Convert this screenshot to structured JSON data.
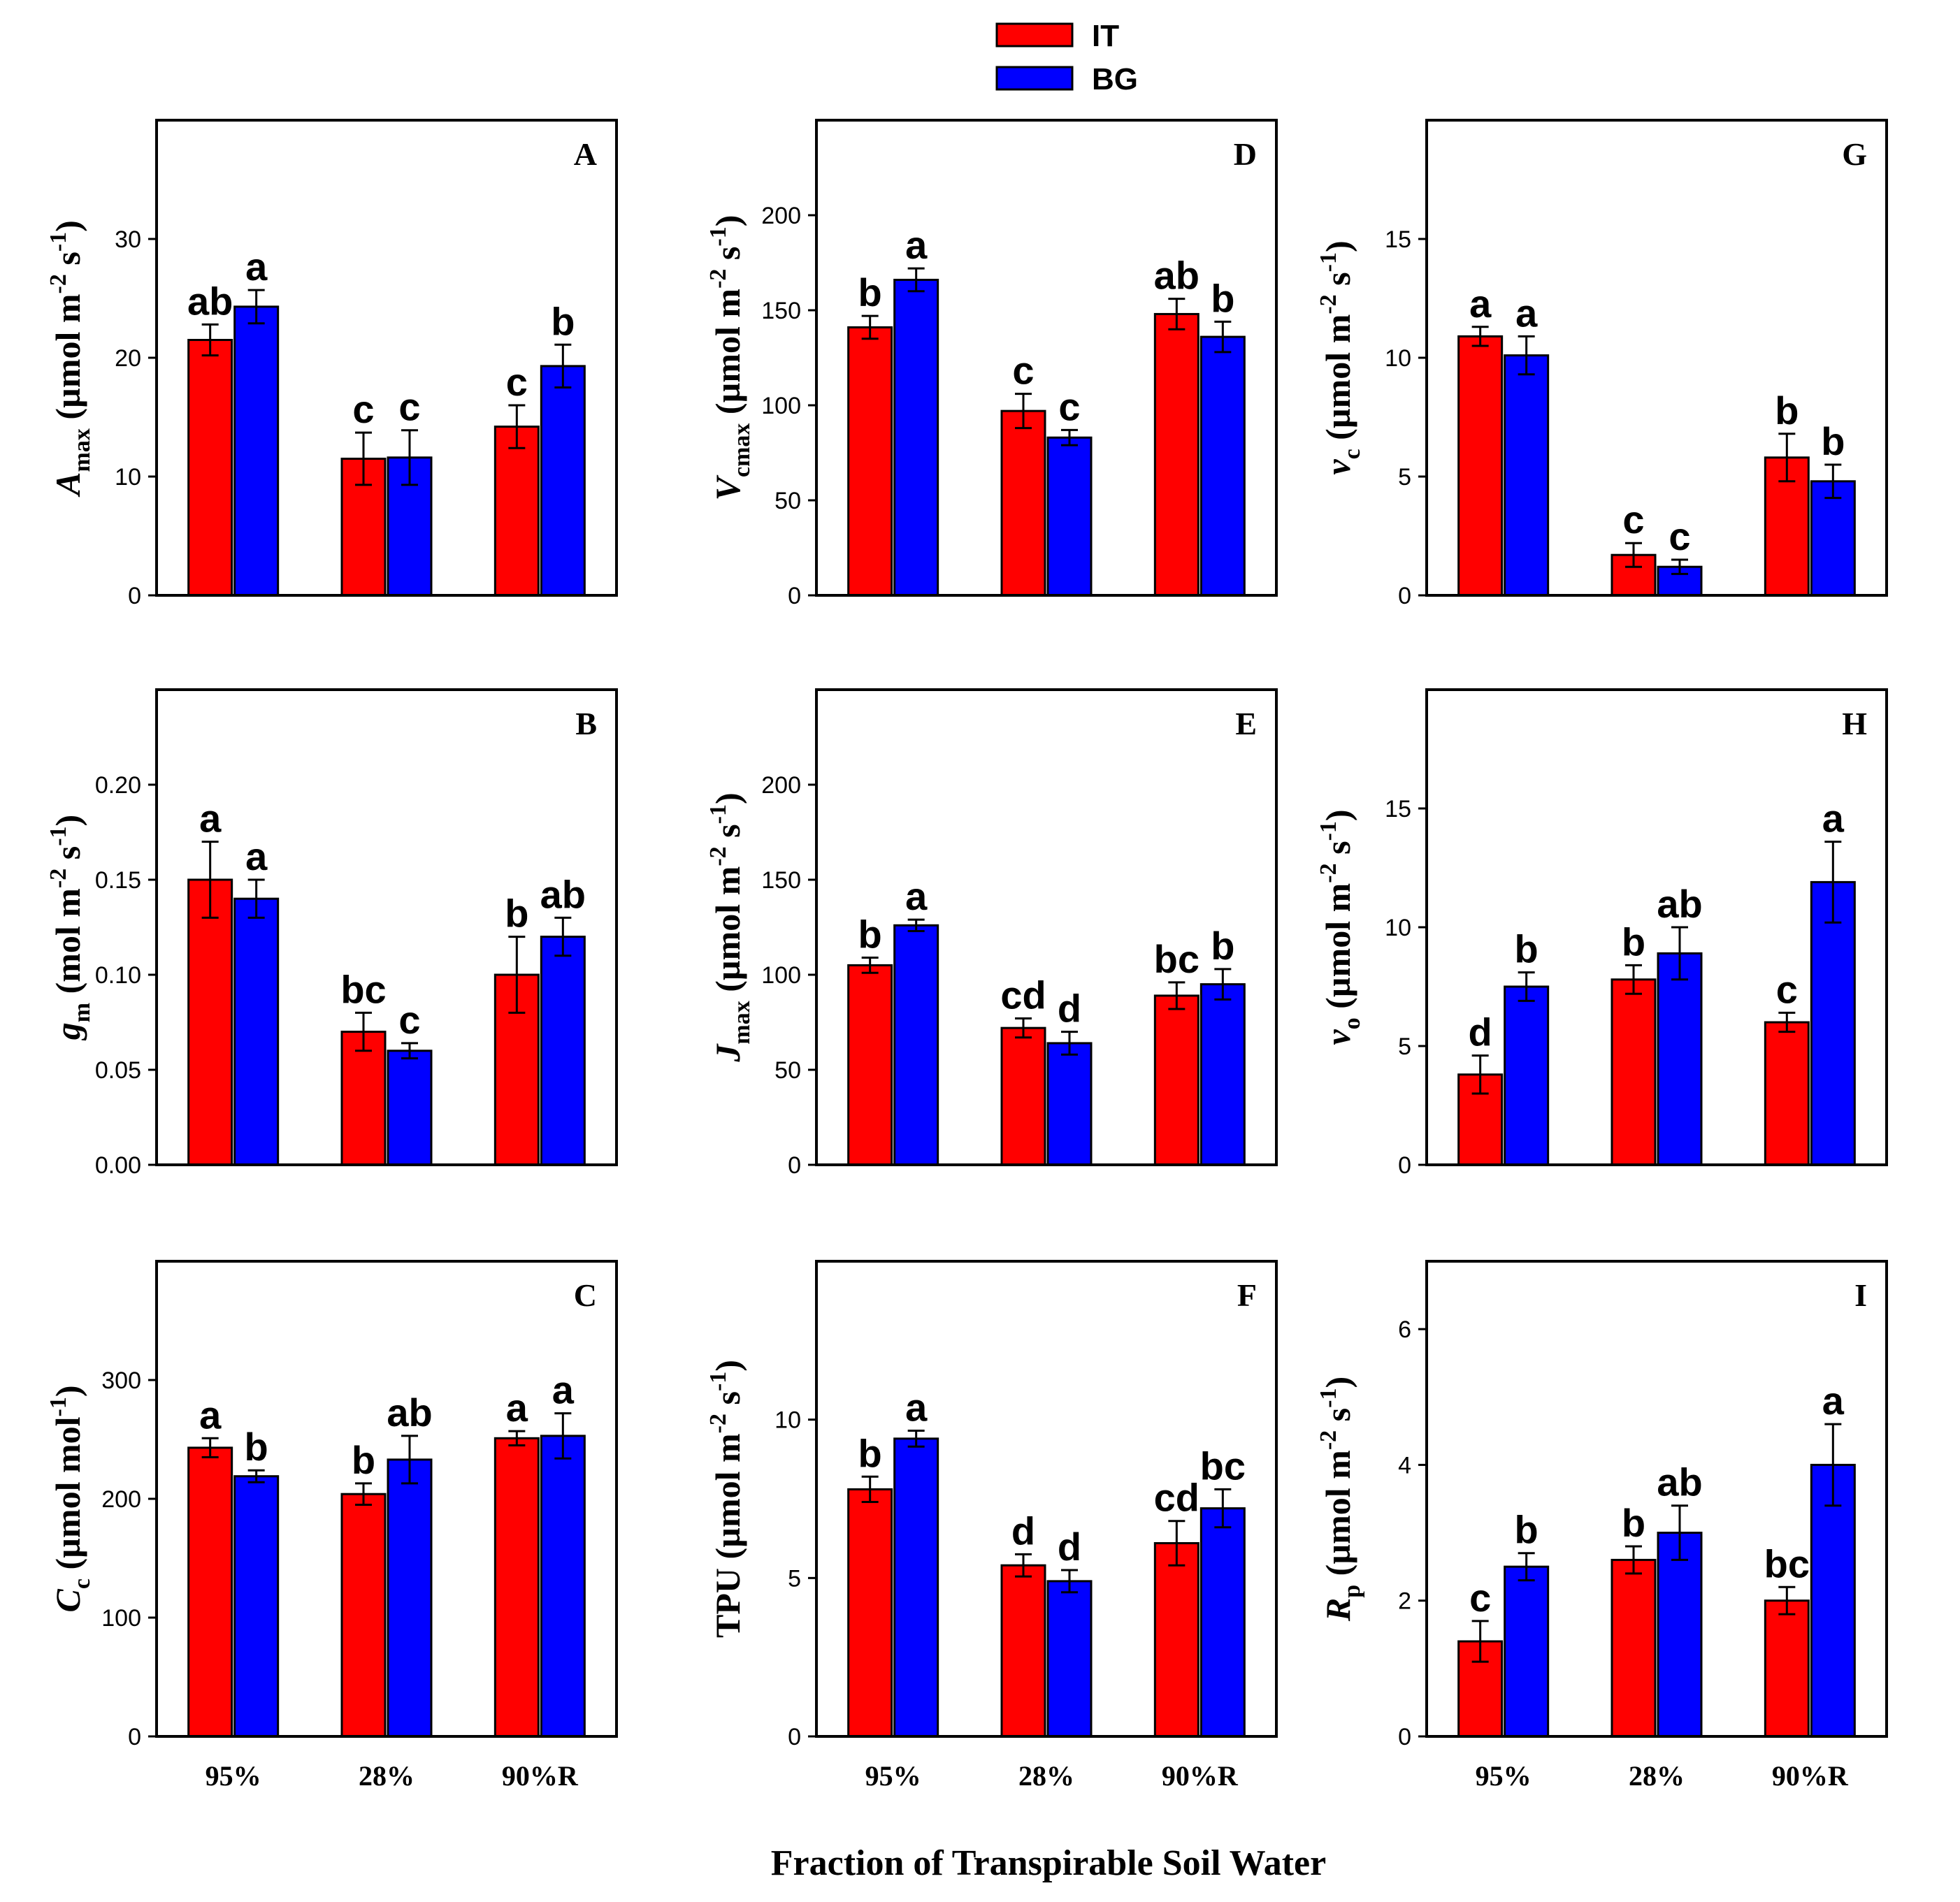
{
  "figure_title": "",
  "xlabel": "Fraction of Transpirable Soil Water",
  "legend": [
    {
      "name": "IT",
      "color": "#ff0000"
    },
    {
      "name": "BG",
      "color": "#0000ff"
    }
  ],
  "chart_data": [
    {
      "id": "A",
      "type": "bar",
      "categories": [
        "95%",
        "28%",
        "90%R"
      ],
      "ylabel": {
        "main": "A",
        "sub": "max",
        "unit": " (µmol m",
        "sup1": "-2",
        "mid": " s",
        "sup2": "-1",
        "end": ")"
      },
      "ylim": [
        0,
        40
      ],
      "yticks": [
        0,
        10,
        20,
        30
      ],
      "series": [
        {
          "name": "IT",
          "values": [
            21.5,
            11.5,
            14.2
          ],
          "errors": [
            1.3,
            2.2,
            1.8
          ],
          "labels": [
            "ab",
            "c",
            "c"
          ]
        },
        {
          "name": "BG",
          "values": [
            24.3,
            11.6,
            19.3
          ],
          "errors": [
            1.4,
            2.3,
            1.8
          ],
          "labels": [
            "a",
            "c",
            "b"
          ]
        }
      ]
    },
    {
      "id": "D",
      "type": "bar",
      "categories": [
        "95%",
        "28%",
        "90%R"
      ],
      "ylabel": {
        "main": "V",
        "sub": "cmax",
        "unit": " (µmol m",
        "sup1": "-2",
        "mid": " s",
        "sup2": "-1",
        "end": ")"
      },
      "ylim": [
        0,
        250
      ],
      "yticks": [
        0,
        50,
        100,
        150,
        200
      ],
      "series": [
        {
          "name": "IT",
          "values": [
            141,
            97,
            148
          ],
          "errors": [
            6,
            9,
            8
          ],
          "labels": [
            "b",
            "c",
            "ab"
          ]
        },
        {
          "name": "BG",
          "values": [
            166,
            83,
            136
          ],
          "errors": [
            6,
            4,
            8
          ],
          "labels": [
            "a",
            "c",
            "b"
          ]
        }
      ]
    },
    {
      "id": "G",
      "type": "bar",
      "categories": [
        "95%",
        "28%",
        "90%R"
      ],
      "ylabel": {
        "main": "v",
        "sub": "c",
        "unit": " (µmol m",
        "sup1": "-2",
        "mid": " s",
        "sup2": "-1",
        "end": ")"
      },
      "ylim": [
        0,
        20
      ],
      "yticks": [
        0,
        5,
        10,
        15
      ],
      "series": [
        {
          "name": "IT",
          "values": [
            10.9,
            1.7,
            5.8
          ],
          "errors": [
            0.4,
            0.5,
            1.0
          ],
          "labels": [
            "a",
            "c",
            "b"
          ]
        },
        {
          "name": "BG",
          "values": [
            10.1,
            1.2,
            4.8
          ],
          "errors": [
            0.8,
            0.3,
            0.7
          ],
          "labels": [
            "a",
            "c",
            "b"
          ]
        }
      ]
    },
    {
      "id": "B",
      "type": "bar",
      "categories": [
        "95%",
        "28%",
        "90%R"
      ],
      "ylabel": {
        "main": "g",
        "sub": "m",
        "unit": " (mol m",
        "sup1": "-2",
        "mid": " s",
        "sup2": "-1",
        "end": ")"
      },
      "ylim": [
        0,
        0.25
      ],
      "yticks": [
        0,
        0.05,
        0.1,
        0.15,
        0.2
      ],
      "tick_format": [
        "0.00",
        "0.05",
        "0.10",
        "0.15",
        "0.20"
      ],
      "series": [
        {
          "name": "IT",
          "values": [
            0.15,
            0.07,
            0.1
          ],
          "errors": [
            0.02,
            0.01,
            0.02
          ],
          "labels": [
            "a",
            "bc",
            "b"
          ]
        },
        {
          "name": "BG",
          "values": [
            0.14,
            0.06,
            0.12
          ],
          "errors": [
            0.01,
            0.004,
            0.01
          ],
          "labels": [
            "a",
            "c",
            "ab"
          ]
        }
      ]
    },
    {
      "id": "E",
      "type": "bar",
      "categories": [
        "95%",
        "28%",
        "90%R"
      ],
      "ylabel": {
        "main": "J",
        "sub": "max",
        "unit": " (µmol m",
        "sup1": "-2",
        "mid": " s",
        "sup2": "-1",
        "end": ")"
      },
      "ylim": [
        0,
        250
      ],
      "yticks": [
        0,
        50,
        100,
        150,
        200
      ],
      "series": [
        {
          "name": "IT",
          "values": [
            105,
            72,
            89
          ],
          "errors": [
            4,
            5,
            7
          ],
          "labels": [
            "b",
            "cd",
            "bc"
          ]
        },
        {
          "name": "BG",
          "values": [
            126,
            64,
            95
          ],
          "errors": [
            3,
            6,
            8
          ],
          "labels": [
            "a",
            "d",
            "b"
          ]
        }
      ]
    },
    {
      "id": "H",
      "type": "bar",
      "categories": [
        "95%",
        "28%",
        "90%R"
      ],
      "ylabel": {
        "main": "v",
        "sub": "o",
        "unit": " (µmol m",
        "sup1": "-2",
        "mid": " s",
        "sup2": "-1",
        "end": ")"
      },
      "ylim": [
        0,
        20
      ],
      "yticks": [
        0,
        5,
        10,
        15
      ],
      "series": [
        {
          "name": "IT",
          "values": [
            3.8,
            7.8,
            6.0
          ],
          "errors": [
            0.8,
            0.6,
            0.4
          ],
          "labels": [
            "d",
            "b",
            "c"
          ]
        },
        {
          "name": "BG",
          "values": [
            7.5,
            8.9,
            11.9
          ],
          "errors": [
            0.6,
            1.1,
            1.7
          ],
          "labels": [
            "b",
            "ab",
            "a"
          ]
        }
      ]
    },
    {
      "id": "C",
      "type": "bar",
      "categories": [
        "95%",
        "28%",
        "90%R"
      ],
      "ylabel": {
        "main": "C",
        "sub": "c",
        "unit": " (µmol mol",
        "sup1": "-1",
        "mid": "",
        "sup2": "",
        "end": ")"
      },
      "ylim": [
        0,
        400
      ],
      "yticks": [
        0,
        100,
        200,
        300
      ],
      "series": [
        {
          "name": "IT",
          "values": [
            243,
            204,
            251
          ],
          "errors": [
            8,
            9,
            6
          ],
          "labels": [
            "a",
            "b",
            "a"
          ]
        },
        {
          "name": "BG",
          "values": [
            219,
            233,
            253
          ],
          "errors": [
            5,
            20,
            19
          ],
          "labels": [
            "b",
            "ab",
            "a"
          ]
        }
      ]
    },
    {
      "id": "F",
      "type": "bar",
      "categories": [
        "95%",
        "28%",
        "90%R"
      ],
      "ylabel": {
        "main": "TPU",
        "sub": "",
        "unit": " (µmol m",
        "sup1": "-2",
        "mid": " s",
        "sup2": "-1",
        "end": ")"
      },
      "ylim": [
        0,
        15
      ],
      "yticks": [
        0,
        5,
        10
      ],
      "series": [
        {
          "name": "IT",
          "values": [
            7.8,
            5.4,
            6.1
          ],
          "errors": [
            0.4,
            0.35,
            0.7
          ],
          "labels": [
            "b",
            "d",
            "cd"
          ]
        },
        {
          "name": "BG",
          "values": [
            9.4,
            4.9,
            7.2
          ],
          "errors": [
            0.25,
            0.35,
            0.6
          ],
          "labels": [
            "a",
            "d",
            "bc"
          ]
        }
      ]
    },
    {
      "id": "I",
      "type": "bar",
      "categories": [
        "95%",
        "28%",
        "90%R"
      ],
      "ylabel": {
        "main": "R",
        "sub": "p",
        "unit": " (µmol m",
        "sup1": "-2",
        "mid": " s",
        "sup2": "-1",
        "end": ")"
      },
      "ylim": [
        0,
        7
      ],
      "yticks": [
        0,
        2,
        4,
        6
      ],
      "series": [
        {
          "name": "IT",
          "values": [
            1.4,
            2.6,
            2.0
          ],
          "errors": [
            0.3,
            0.2,
            0.2
          ],
          "labels": [
            "c",
            "b",
            "bc"
          ]
        },
        {
          "name": "BG",
          "values": [
            2.5,
            3.0,
            4.0
          ],
          "errors": [
            0.2,
            0.4,
            0.6
          ],
          "labels": [
            "b",
            "ab",
            "a"
          ]
        }
      ]
    }
  ]
}
